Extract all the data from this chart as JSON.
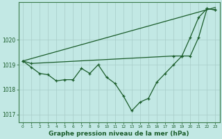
{
  "title": "Graphe pression niveau de la mer (hPa)",
  "background_color": "#c2e8e4",
  "grid_color": "#a8ccc8",
  "line_color": "#1a5c2a",
  "spine_color": "#3a7a4a",
  "ylim": [
    1016.7,
    1021.5
  ],
  "yticks": [
    1017,
    1018,
    1019,
    1020
  ],
  "xlim": [
    -0.5,
    23.5
  ],
  "straight_line": {
    "x": [
      0,
      23
    ],
    "y": [
      1019.15,
      1021.3
    ]
  },
  "middle_line": {
    "x": [
      0,
      1,
      18,
      19,
      20,
      21,
      22,
      23
    ],
    "y": [
      1019.15,
      1019.05,
      1019.35,
      1019.35,
      1020.1,
      1020.9,
      1021.25,
      1021.2
    ]
  },
  "dip_line": {
    "x": [
      0,
      1,
      2,
      3,
      4,
      5,
      6,
      7,
      8,
      9,
      10,
      11,
      12,
      13,
      14,
      15,
      16,
      17,
      18,
      19,
      20,
      21,
      22,
      23
    ],
    "y": [
      1019.15,
      1018.9,
      1018.65,
      1018.6,
      1018.35,
      1018.4,
      1018.4,
      1018.85,
      1018.65,
      1019.0,
      1018.5,
      1018.25,
      1017.75,
      1017.15,
      1017.5,
      1017.65,
      1018.3,
      1018.65,
      1019.0,
      1019.35,
      1019.35,
      1020.1,
      1021.25,
      1021.2
    ]
  }
}
